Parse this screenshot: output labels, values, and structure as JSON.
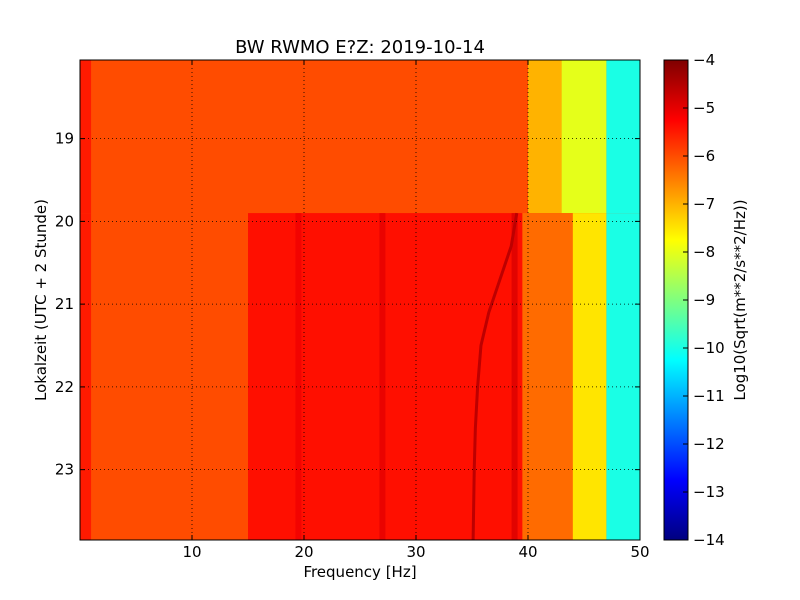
{
  "chart_data": {
    "type": "heatmap",
    "title": "BW RWMO E?Z: 2019-10-14",
    "xlabel": "Frequency [Hz]",
    "ylabel": "Lokalzeit (UTC + 2 Stunde)",
    "xlim": [
      0,
      50
    ],
    "ylim": [
      23.85,
      18.05
    ],
    "x_ticks": [
      10,
      20,
      30,
      40,
      50
    ],
    "y_ticks": [
      19,
      20,
      21,
      22,
      23
    ],
    "grid": true,
    "grid_style": "dotted",
    "colormap": "jet",
    "colorbar": {
      "label": "Log10(Sqrt(m**2/s**2/Hz))",
      "range": [
        -14,
        -4
      ],
      "ticks": [
        -4,
        -5,
        -6,
        -7,
        -8,
        -9,
        -10,
        -11,
        -12,
        -13,
        -14
      ]
    },
    "data_summary": {
      "background_level": -6.0,
      "time_step_change": 19.9,
      "before_step": [
        {
          "freq_from": 0,
          "freq_to": 1,
          "level": -5.5
        },
        {
          "freq_from": 1,
          "freq_to": 40,
          "level": -6.0
        },
        {
          "freq_from": 40,
          "freq_to": 43,
          "level": -7.0
        },
        {
          "freq_from": 43,
          "freq_to": 47,
          "level": -8.0
        },
        {
          "freq_from": 47,
          "freq_to": 50,
          "level": -10.0
        }
      ],
      "after_step": [
        {
          "freq_from": 0,
          "freq_to": 1,
          "level": -5.5
        },
        {
          "freq_from": 1,
          "freq_to": 15,
          "level": -6.0
        },
        {
          "freq_from": 15,
          "freq_to": 39.5,
          "level": -5.4
        },
        {
          "freq_from": 39.5,
          "freq_to": 44,
          "level": -6.3
        },
        {
          "freq_from": 44,
          "freq_to": 47,
          "level": -7.5
        },
        {
          "freq_from": 47,
          "freq_to": 50,
          "level": -10.0
        }
      ],
      "dark_bands": [
        {
          "freq": 19.5,
          "level": -5.1
        },
        {
          "freq": 27,
          "level": -5.0
        },
        {
          "freq": 38.8,
          "level": -4.9
        }
      ],
      "drifting_line": {
        "level": -4.6,
        "points": [
          {
            "time": 19.9,
            "freq": 39.0
          },
          {
            "time": 20.3,
            "freq": 38.5
          },
          {
            "time": 20.7,
            "freq": 37.5
          },
          {
            "time": 21.1,
            "freq": 36.5
          },
          {
            "time": 21.5,
            "freq": 35.8
          },
          {
            "time": 22.0,
            "freq": 35.5
          },
          {
            "time": 22.5,
            "freq": 35.3
          },
          {
            "time": 23.0,
            "freq": 35.2
          },
          {
            "time": 23.85,
            "freq": 35.1
          }
        ]
      }
    }
  }
}
